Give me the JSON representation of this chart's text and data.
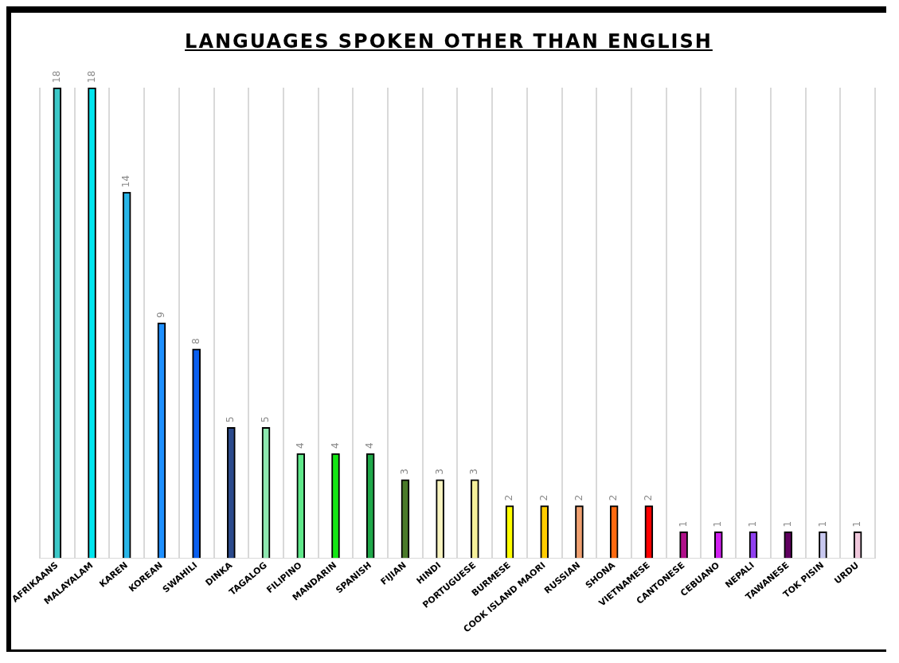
{
  "chart_data": {
    "type": "bar",
    "title": "LANGUAGES SPOKEN OTHER THAN ENGLISH",
    "categories": [
      "AFRIKAANS",
      "MALAYALAM",
      "KAREN",
      "KOREAN",
      "SWAHILI",
      "DINKA",
      "TAGALOG",
      "FILIPINO",
      "MANDARIN",
      "SPANISH",
      "FIJIAN",
      "HINDI",
      "PORTUGUESE",
      "BURMESE",
      "COOK ISLAND MAORI",
      "RUSSIAN",
      "SHONA",
      "VIETNAMESE",
      "CANTONESE",
      "CEBUANO",
      "NEPALI",
      "TAWANESE",
      "TOK PISIN",
      "URDU"
    ],
    "values": [
      18,
      18,
      14,
      9,
      8,
      5,
      5,
      4,
      4,
      4,
      3,
      3,
      3,
      2,
      2,
      2,
      2,
      2,
      1,
      1,
      1,
      1,
      1,
      1
    ],
    "colors": [
      "#3cc8c8",
      "#00e5ee",
      "#29b6e8",
      "#1e90ff",
      "#0a5ff0",
      "#2b4a8c",
      "#8ee8b0",
      "#5fe88a",
      "#14e614",
      "#1fa84a",
      "#4a7a2a",
      "#f8f4c0",
      "#f5f09a",
      "#ffff00",
      "#ffcc00",
      "#f0a070",
      "#ff6a10",
      "#ff0000",
      "#b0108a",
      "#d020f0",
      "#9040f0",
      "#600060",
      "#c8c8f0",
      "#f0c8dc"
    ],
    "data_labels": true,
    "grid": "x",
    "legend": false
  }
}
